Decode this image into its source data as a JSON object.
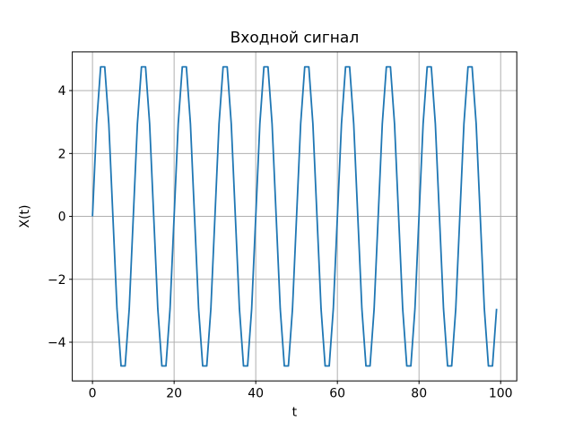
{
  "chart_data": {
    "type": "line",
    "title": "Входной сигнал",
    "xlabel": "t",
    "ylabel": "X(t)",
    "grid": true,
    "legend": false,
    "line_color": "#1f77b4",
    "grid_color": "#b0b0b0",
    "spine_color": "#000000",
    "background_color": "#ffffff",
    "xlim": [
      -4.95,
      103.95
    ],
    "ylim": [
      -5.2305,
      5.2305
    ],
    "xticks": [
      0,
      20,
      40,
      60,
      80,
      100
    ],
    "xtick_labels": [
      "0",
      "20",
      "40",
      "60",
      "80",
      "100"
    ],
    "yticks": [
      -4,
      -2,
      0,
      2,
      4
    ],
    "ytick_labels": [
      "−4",
      "−2",
      "0",
      "2",
      "4"
    ],
    "series": [
      {
        "name": "X(t)",
        "x": [
          0,
          1,
          2,
          3,
          4,
          5,
          6,
          7,
          8,
          9,
          10,
          11,
          12,
          13,
          14,
          15,
          16,
          17,
          18,
          19,
          20,
          21,
          22,
          23,
          24,
          25,
          26,
          27,
          28,
          29,
          30,
          31,
          32,
          33,
          34,
          35,
          36,
          37,
          38,
          39,
          40,
          41,
          42,
          43,
          44,
          45,
          46,
          47,
          48,
          49,
          50,
          51,
          52,
          53,
          54,
          55,
          56,
          57,
          58,
          59,
          60,
          61,
          62,
          63,
          64,
          65,
          66,
          67,
          68,
          69,
          70,
          71,
          72,
          73,
          74,
          75,
          76,
          77,
          78,
          79,
          80,
          81,
          82,
          83,
          84,
          85,
          86,
          87,
          88,
          89,
          90,
          91,
          92,
          93,
          94,
          95,
          96,
          97,
          98,
          99
        ],
        "y": [
          0,
          2.939,
          4.755,
          4.755,
          2.939,
          0,
          -2.939,
          -4.755,
          -4.755,
          -2.939,
          0,
          2.939,
          4.755,
          4.755,
          2.939,
          0,
          -2.939,
          -4.755,
          -4.755,
          -2.939,
          0,
          2.939,
          4.755,
          4.755,
          2.939,
          0,
          -2.939,
          -4.755,
          -4.755,
          -2.939,
          0,
          2.939,
          4.755,
          4.755,
          2.939,
          0,
          -2.939,
          -4.755,
          -4.755,
          -2.939,
          0,
          2.939,
          4.755,
          4.755,
          2.939,
          0,
          -2.939,
          -4.755,
          -4.755,
          -2.939,
          0,
          2.939,
          4.755,
          4.755,
          2.939,
          0,
          -2.939,
          -4.755,
          -4.755,
          -2.939,
          0,
          2.939,
          4.755,
          4.755,
          2.939,
          0,
          -2.939,
          -4.755,
          -4.755,
          -2.939,
          0,
          2.939,
          4.755,
          4.755,
          2.939,
          0,
          -2.939,
          -4.755,
          -4.755,
          -2.939,
          0,
          2.939,
          4.755,
          4.755,
          2.939,
          0,
          -2.939,
          -4.755,
          -4.755,
          -2.939,
          0,
          2.939,
          4.755,
          4.755,
          2.939,
          0,
          -2.939,
          -4.755,
          -4.755,
          -2.939
        ]
      }
    ]
  }
}
